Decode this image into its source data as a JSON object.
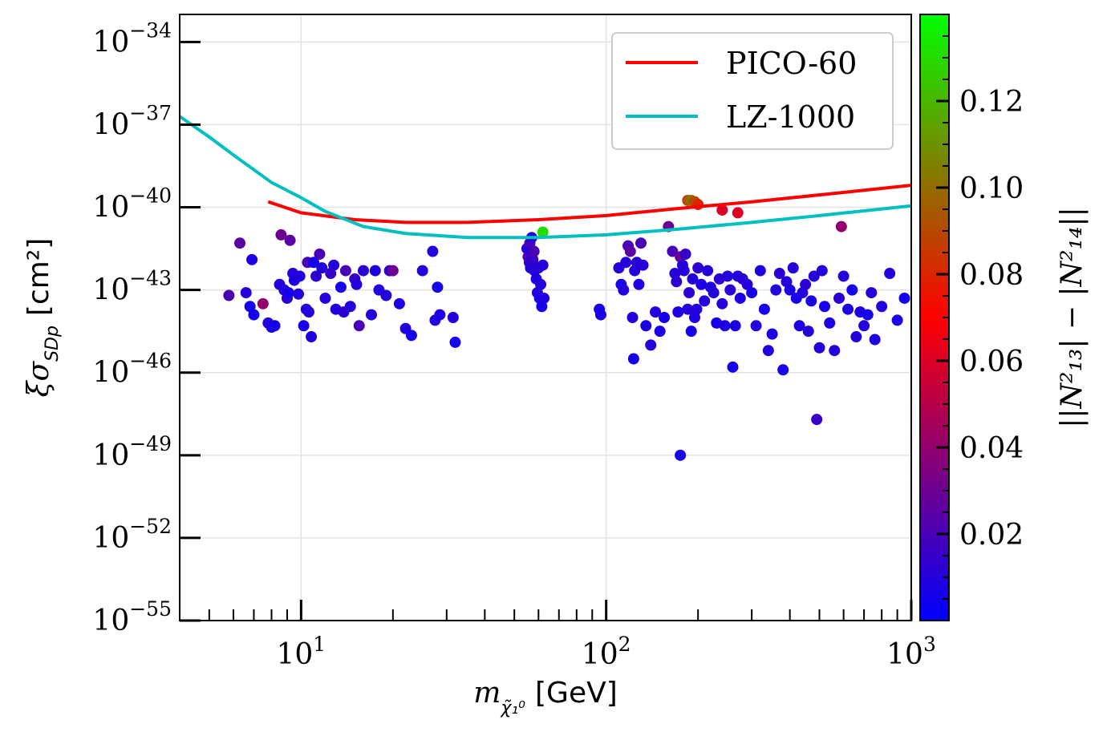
{
  "chart_data": {
    "type": "scatter",
    "x_axis": {
      "label": "m",
      "label_subscript": "χ̃₁⁰",
      "label_unit": "[GeV]",
      "scale": "log",
      "lim": [
        4,
        1000
      ],
      "major_ticks": [
        10,
        100,
        1000
      ],
      "tick_labels": [
        {
          "base": "10",
          "exp": "1"
        },
        {
          "base": "10",
          "exp": "2"
        },
        {
          "base": "10",
          "exp": "3"
        }
      ]
    },
    "y_axis": {
      "label": "ξσ",
      "label_subscript": "SDp",
      "label_unit": "[cm²]",
      "scale": "log",
      "lim": [
        -55,
        -33
      ],
      "major_ticks": [
        -34,
        -37,
        -40,
        -43,
        -46,
        -49,
        -52,
        -55
      ],
      "tick_labels": [
        {
          "base": "10",
          "exp": "−34"
        },
        {
          "base": "10",
          "exp": "−37"
        },
        {
          "base": "10",
          "exp": "−40"
        },
        {
          "base": "10",
          "exp": "−43"
        },
        {
          "base": "10",
          "exp": "−46"
        },
        {
          "base": "10",
          "exp": "−49"
        },
        {
          "base": "10",
          "exp": "−52"
        },
        {
          "base": "10",
          "exp": "−55"
        }
      ]
    },
    "grid": true,
    "legend": {
      "placement": "top-right",
      "entries": [
        "PICO-60",
        "LZ-1000"
      ]
    },
    "lines": [
      {
        "name": "PICO-60",
        "color": "#ff0000",
        "x": [
          7.8,
          10,
          15,
          22,
          35,
          60,
          100,
          170,
          300,
          500,
          1000
        ],
        "y": [
          -39.8,
          -40.2,
          -40.45,
          -40.55,
          -40.55,
          -40.45,
          -40.3,
          -40.05,
          -39.8,
          -39.55,
          -39.2
        ]
      },
      {
        "name": "LZ-1000",
        "color": "#00bfbf",
        "x": [
          4,
          5,
          6,
          8,
          10,
          12,
          16,
          22,
          35,
          60,
          100,
          170,
          300,
          500,
          1000
        ],
        "y": [
          -36.7,
          -37.45,
          -38.1,
          -39.1,
          -39.65,
          -40.15,
          -40.7,
          -40.95,
          -41.1,
          -41.1,
          -41.0,
          -40.8,
          -40.55,
          -40.3,
          -39.95
        ]
      }
    ],
    "colorbar": {
      "label": "||N²₁₃| − |N²₁₄||",
      "range": [
        0.0,
        0.14
      ],
      "ticks": [
        0.02,
        0.04,
        0.06,
        0.08,
        0.1,
        0.12
      ],
      "tick_labels": [
        "0.02",
        "0.04",
        "0.06",
        "0.08",
        "0.10",
        "0.12"
      ],
      "colormap": "brg"
    },
    "points": [
      [
        5.8,
        -43.2,
        0.02
      ],
      [
        6.3,
        -41.3,
        0.025
      ],
      [
        6.6,
        -43.1,
        0.01
      ],
      [
        6.8,
        -43.6,
        0.005
      ],
      [
        6.9,
        -41.9,
        0.008
      ],
      [
        7.0,
        -43.9,
        0.006
      ],
      [
        7.5,
        -43.5,
        0.04
      ],
      [
        7.8,
        -44.2,
        0.01
      ],
      [
        8.0,
        -44.35,
        0.008
      ],
      [
        8.2,
        -44.3,
        0.006
      ],
      [
        8.5,
        -42.8,
        0.01
      ],
      [
        8.6,
        -41.0,
        0.03
      ],
      [
        8.8,
        -43.0,
        0.01
      ],
      [
        9.0,
        -43.3,
        0.012
      ],
      [
        9.1,
        -43.1,
        0.005
      ],
      [
        9.2,
        -41.2,
        0.025
      ],
      [
        9.4,
        -42.4,
        0.01
      ],
      [
        9.5,
        -42.65,
        0.008
      ],
      [
        9.8,
        -43.15,
        0.01
      ],
      [
        9.9,
        -42.5,
        0.009
      ],
      [
        10.2,
        -44.3,
        0.006
      ],
      [
        10.4,
        -43.7,
        0.008
      ],
      [
        10.5,
        -42.0,
        0.02
      ],
      [
        10.6,
        -43.8,
        0.01
      ],
      [
        10.8,
        -44.7,
        0.008
      ],
      [
        11.0,
        -42.0,
        0.006
      ],
      [
        11.2,
        -42.5,
        0.012
      ],
      [
        11.5,
        -41.7,
        0.02
      ],
      [
        11.7,
        -42.2,
        0.01
      ],
      [
        12.0,
        -43.3,
        0.01
      ],
      [
        12.5,
        -42.4,
        0.015
      ],
      [
        12.8,
        -42.1,
        0.01
      ],
      [
        13.0,
        -43.7,
        0.008
      ],
      [
        13.5,
        -42.9,
        0.006
      ],
      [
        13.8,
        -43.8,
        0.012
      ],
      [
        14.0,
        -42.3,
        0.02
      ],
      [
        14.5,
        -43.6,
        0.01
      ],
      [
        15.0,
        -42.6,
        0.015
      ],
      [
        15.2,
        -42.8,
        0.01
      ],
      [
        15.5,
        -44.3,
        0.02
      ],
      [
        16.0,
        -42.3,
        0.012
      ],
      [
        17.0,
        -43.9,
        0.01
      ],
      [
        17.5,
        -42.3,
        0.008
      ],
      [
        18.0,
        -43.0,
        0.01
      ],
      [
        19.0,
        -43.2,
        0.01
      ],
      [
        19.5,
        -42.3,
        0.012
      ],
      [
        20.0,
        -42.3,
        0.03
      ],
      [
        21.0,
        -43.5,
        0.008
      ],
      [
        22.0,
        -44.4,
        0.01
      ],
      [
        23.0,
        -44.65,
        0.006
      ],
      [
        25.0,
        -42.3,
        0.01
      ],
      [
        27.0,
        -41.6,
        0.01
      ],
      [
        27.5,
        -44.1,
        0.01
      ],
      [
        28.0,
        -42.9,
        0.006
      ],
      [
        28.5,
        -43.9,
        0.008
      ],
      [
        31.5,
        -44.0,
        0.01
      ],
      [
        32.0,
        -44.9,
        0.006
      ],
      [
        55.0,
        -41.5,
        0.01
      ],
      [
        55.5,
        -41.8,
        0.02
      ],
      [
        56.0,
        -42.0,
        0.015
      ],
      [
        56.2,
        -41.3,
        0.02
      ],
      [
        56.5,
        -42.2,
        0.01
      ],
      [
        57.0,
        -41.1,
        0.01
      ],
      [
        57.0,
        -41.6,
        0.012
      ],
      [
        57.5,
        -41.9,
        0.015
      ],
      [
        58.0,
        -41.6,
        0.02
      ],
      [
        58.2,
        -42.3,
        0.01
      ],
      [
        59.0,
        -42.6,
        0.008
      ],
      [
        59.5,
        -43.1,
        0.01
      ],
      [
        60.0,
        -42.2,
        0.012
      ],
      [
        60.5,
        -43.3,
        0.008
      ],
      [
        61.0,
        -42.8,
        0.01
      ],
      [
        61.5,
        -43.6,
        0.006
      ],
      [
        62.0,
        -40.9,
        0.13
      ],
      [
        62.0,
        -42.1,
        0.01
      ],
      [
        62.5,
        -43.3,
        0.008
      ],
      [
        95.0,
        -43.7,
        0.006
      ],
      [
        96.0,
        -43.9,
        0.008
      ],
      [
        110.0,
        -42.2,
        0.01
      ],
      [
        112.0,
        -42.8,
        0.006
      ],
      [
        114.0,
        -43.0,
        0.01
      ],
      [
        116.0,
        -42.0,
        0.01
      ],
      [
        118.0,
        -41.4,
        0.02
      ],
      [
        120.0,
        -41.6,
        0.025
      ],
      [
        122.0,
        -44.0,
        0.01
      ],
      [
        123.0,
        -45.5,
        0.006
      ],
      [
        124.0,
        -42.3,
        0.01
      ],
      [
        126.0,
        -42.0,
        0.012
      ],
      [
        128.0,
        -42.8,
        0.008
      ],
      [
        130.0,
        -41.3,
        0.02
      ],
      [
        132.0,
        -42.1,
        0.01
      ],
      [
        135.0,
        -44.3,
        0.008
      ],
      [
        140.0,
        -45.0,
        0.01
      ],
      [
        145.0,
        -43.8,
        0.01
      ],
      [
        150.0,
        -44.5,
        0.008
      ],
      [
        155.0,
        -44.0,
        0.006
      ],
      [
        160.0,
        -40.7,
        0.03
      ],
      [
        165.0,
        -41.6,
        0.02
      ],
      [
        168.0,
        -42.4,
        0.01
      ],
      [
        170.0,
        -42.7,
        0.012
      ],
      [
        172.0,
        -43.8,
        0.008
      ],
      [
        175.0,
        -41.8,
        0.03
      ],
      [
        178.0,
        -42.1,
        0.01
      ],
      [
        180.0,
        -42.3,
        0.01
      ],
      [
        182.0,
        -41.7,
        0.015
      ],
      [
        185.0,
        -43.7,
        0.01
      ],
      [
        187.0,
        -43.1,
        0.012
      ],
      [
        190.0,
        -44.5,
        0.006
      ],
      [
        192.0,
        -42.6,
        0.01
      ],
      [
        195.0,
        -44.0,
        0.008
      ],
      [
        198.0,
        -43.7,
        0.01
      ],
      [
        200.0,
        -42.2,
        0.012
      ],
      [
        205.0,
        -42.8,
        0.008
      ],
      [
        210.0,
        -43.4,
        0.01
      ],
      [
        215.0,
        -42.3,
        0.01
      ],
      [
        220.0,
        -42.9,
        0.008
      ],
      [
        225.0,
        -43.1,
        0.01
      ],
      [
        230.0,
        -44.2,
        0.006
      ],
      [
        235.0,
        -42.6,
        0.012
      ],
      [
        240.0,
        -43.5,
        0.01
      ],
      [
        245.0,
        -44.3,
        0.008
      ],
      [
        250.0,
        -42.5,
        0.01
      ],
      [
        255.0,
        -43.0,
        0.012
      ],
      [
        260.0,
        -45.8,
        0.006
      ],
      [
        265.0,
        -44.3,
        0.008
      ],
      [
        270.0,
        -42.5,
        0.01
      ],
      [
        275.0,
        -43.3,
        0.008
      ],
      [
        280.0,
        -42.6,
        0.012
      ],
      [
        290.0,
        -42.8,
        0.01
      ],
      [
        300.0,
        -43.1,
        0.006
      ],
      [
        310.0,
        -44.3,
        0.01
      ],
      [
        320.0,
        -42.3,
        0.008
      ],
      [
        330.0,
        -43.7,
        0.006
      ],
      [
        340.0,
        -45.2,
        0.01
      ],
      [
        350.0,
        -44.6,
        0.008
      ],
      [
        360.0,
        -43.0,
        0.01
      ],
      [
        370.0,
        -42.4,
        0.012
      ],
      [
        380.0,
        -45.9,
        0.006
      ],
      [
        390.0,
        -42.7,
        0.01
      ],
      [
        400.0,
        -43.0,
        0.008
      ],
      [
        410.0,
        -42.2,
        0.01
      ],
      [
        420.0,
        -43.3,
        0.006
      ],
      [
        430.0,
        -44.3,
        0.008
      ],
      [
        440.0,
        -43.1,
        0.01
      ],
      [
        450.0,
        -42.8,
        0.012
      ],
      [
        460.0,
        -44.5,
        0.01
      ],
      [
        470.0,
        -43.4,
        0.008
      ],
      [
        480.0,
        -42.5,
        0.01
      ],
      [
        490.0,
        -47.7,
        0.015
      ],
      [
        500.0,
        -45.1,
        0.01
      ],
      [
        510.0,
        -42.3,
        0.01
      ],
      [
        520.0,
        -43.6,
        0.006
      ],
      [
        540.0,
        -44.2,
        0.008
      ],
      [
        560.0,
        -45.2,
        0.01
      ],
      [
        580.0,
        -43.3,
        0.012
      ],
      [
        600.0,
        -42.5,
        0.01
      ],
      [
        620.0,
        -43.7,
        0.008
      ],
      [
        640.0,
        -43.0,
        0.006
      ],
      [
        660.0,
        -44.7,
        0.01
      ],
      [
        680.0,
        -43.8,
        0.008
      ],
      [
        700.0,
        -44.3,
        0.01
      ],
      [
        720.0,
        -43.9,
        0.006
      ],
      [
        740.0,
        -43.1,
        0.01
      ],
      [
        760.0,
        -44.8,
        0.008
      ],
      [
        800.0,
        -43.6,
        0.01
      ],
      [
        850.0,
        -42.4,
        0.01
      ],
      [
        900.0,
        -44.1,
        0.008
      ],
      [
        950.0,
        -43.3,
        0.006
      ],
      [
        175.0,
        -49.0,
        0.006
      ],
      [
        590.0,
        -40.7,
        0.04
      ],
      [
        185.0,
        -39.75,
        0.09
      ],
      [
        190.0,
        -39.75,
        0.1
      ],
      [
        195.0,
        -39.8,
        0.09
      ],
      [
        200.0,
        -39.9,
        0.08
      ],
      [
        240.0,
        -40.1,
        0.06
      ],
      [
        270.0,
        -40.2,
        0.06
      ]
    ]
  }
}
